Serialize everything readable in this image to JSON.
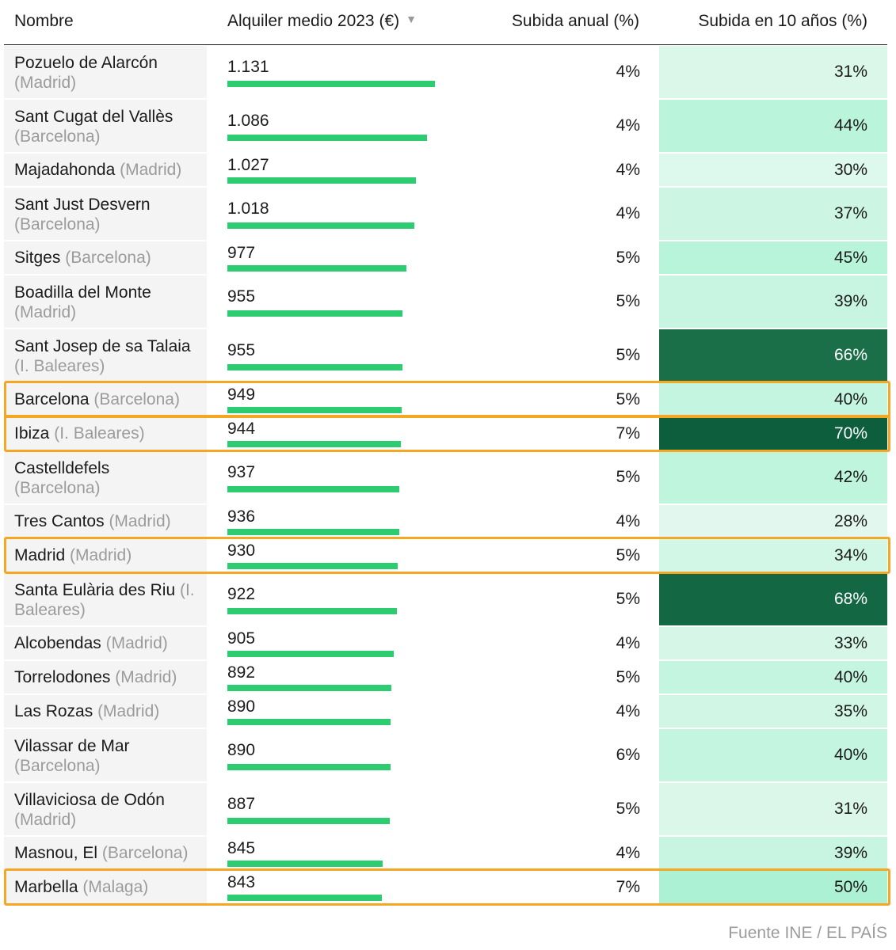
{
  "table": {
    "columns": {
      "name": "Nombre",
      "rent": "Alquiler medio 2023 (€)",
      "annual": "Subida anual (%)",
      "ten_years": "Subida en 10 años (%)"
    },
    "sort_icon": "sort-down-icon",
    "source": "Fuente INE / EL PAÍS"
  },
  "chart_data": {
    "type": "table",
    "title": "Alquiler medio 2023 (€)",
    "highlighted_rows": [
      "Barcelona",
      "Ibiza",
      "Madrid",
      "Marbella"
    ],
    "colors": {
      "bar": "#2dcc70",
      "highlight": "#f5a623",
      "heat_low": "#e6faf0",
      "heat_high": "#0d5e3d"
    },
    "rows": [
      {
        "city": "Pozuelo de Alarcón",
        "region": "(Madrid)",
        "rent": 1131,
        "rent_label": "1.131",
        "annual": "4%",
        "ten": 31,
        "ten_label": "31%"
      },
      {
        "city": "Sant Cugat del Vallès",
        "region": "(Barcelona)",
        "rent": 1086,
        "rent_label": "1.086",
        "annual": "4%",
        "ten": 44,
        "ten_label": "44%"
      },
      {
        "city": "Majadahonda",
        "region": "(Madrid)",
        "rent": 1027,
        "rent_label": "1.027",
        "annual": "4%",
        "ten": 30,
        "ten_label": "30%"
      },
      {
        "city": "Sant Just Desvern",
        "region": "(Barcelona)",
        "rent": 1018,
        "rent_label": "1.018",
        "annual": "4%",
        "ten": 37,
        "ten_label": "37%"
      },
      {
        "city": "Sitges",
        "region": "(Barcelona)",
        "rent": 977,
        "rent_label": "977",
        "annual": "5%",
        "ten": 45,
        "ten_label": "45%"
      },
      {
        "city": "Boadilla del Monte",
        "region": "(Madrid)",
        "rent": 955,
        "rent_label": "955",
        "annual": "5%",
        "ten": 39,
        "ten_label": "39%"
      },
      {
        "city": "Sant Josep de sa Talaia",
        "region": "(I. Baleares)",
        "rent": 955,
        "rent_label": "955",
        "annual": "5%",
        "ten": 66,
        "ten_label": "66%"
      },
      {
        "city": "Barcelona",
        "region": "(Barcelona)",
        "rent": 949,
        "rent_label": "949",
        "annual": "5%",
        "ten": 40,
        "ten_label": "40%"
      },
      {
        "city": "Ibiza",
        "region": "(I. Baleares)",
        "rent": 944,
        "rent_label": "944",
        "annual": "7%",
        "ten": 70,
        "ten_label": "70%"
      },
      {
        "city": "Castelldefels",
        "region": "(Barcelona)",
        "rent": 937,
        "rent_label": "937",
        "annual": "5%",
        "ten": 42,
        "ten_label": "42%"
      },
      {
        "city": "Tres Cantos",
        "region": "(Madrid)",
        "rent": 936,
        "rent_label": "936",
        "annual": "4%",
        "ten": 28,
        "ten_label": "28%"
      },
      {
        "city": "Madrid",
        "region": "(Madrid)",
        "rent": 930,
        "rent_label": "930",
        "annual": "5%",
        "ten": 34,
        "ten_label": "34%"
      },
      {
        "city": "Santa Eulària des Riu",
        "region": "(I. Baleares)",
        "rent": 922,
        "rent_label": "922",
        "annual": "5%",
        "ten": 68,
        "ten_label": "68%"
      },
      {
        "city": "Alcobendas",
        "region": "(Madrid)",
        "rent": 905,
        "rent_label": "905",
        "annual": "4%",
        "ten": 33,
        "ten_label": "33%"
      },
      {
        "city": "Torrelodones",
        "region": "(Madrid)",
        "rent": 892,
        "rent_label": "892",
        "annual": "5%",
        "ten": 40,
        "ten_label": "40%"
      },
      {
        "city": "Las Rozas",
        "region": "(Madrid)",
        "rent": 890,
        "rent_label": "890",
        "annual": "4%",
        "ten": 35,
        "ten_label": "35%"
      },
      {
        "city": "Vilassar de Mar",
        "region": "(Barcelona)",
        "rent": 890,
        "rent_label": "890",
        "annual": "6%",
        "ten": 40,
        "ten_label": "40%"
      },
      {
        "city": "Villaviciosa de Odón",
        "region": "(Madrid)",
        "rent": 887,
        "rent_label": "887",
        "annual": "5%",
        "ten": 31,
        "ten_label": "31%"
      },
      {
        "city": "Masnou, El",
        "region": "(Barcelona)",
        "rent": 845,
        "rent_label": "845",
        "annual": "4%",
        "ten": 39,
        "ten_label": "39%"
      },
      {
        "city": "Marbella",
        "region": "(Malaga)",
        "rent": 843,
        "rent_label": "843",
        "annual": "7%",
        "ten": 50,
        "ten_label": "50%"
      }
    ]
  }
}
